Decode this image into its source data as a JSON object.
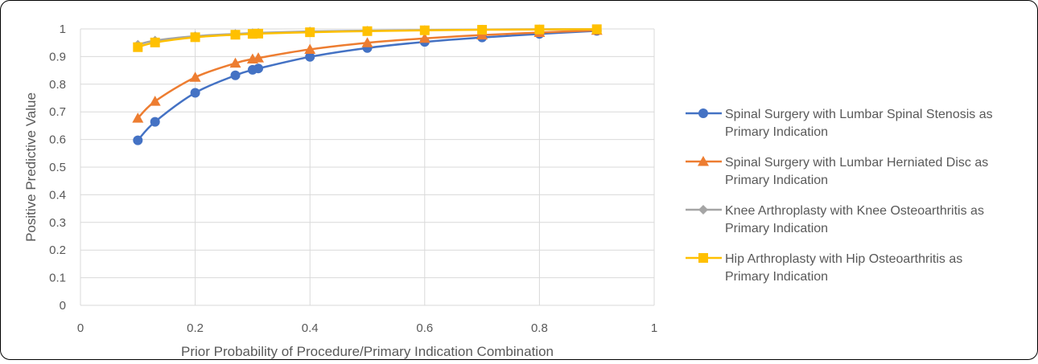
{
  "chart_data": {
    "type": "line",
    "title": "",
    "xlabel": "Prior Probability of Procedure/Primary Indication Combination",
    "ylabel": "Positive Predictive Value",
    "xlim": [
      0,
      1
    ],
    "ylim": [
      0,
      1
    ],
    "x_ticks": [
      "0",
      "0.2",
      "0.4",
      "0.6",
      "0.8",
      "1"
    ],
    "y_ticks": [
      "0",
      "0.1",
      "0.2",
      "0.3",
      "0.4",
      "0.5",
      "0.6",
      "0.7",
      "0.8",
      "0.9",
      "1"
    ],
    "grid": "vertical and horizontal major gridlines",
    "legend_position": "right",
    "series": [
      {
        "name": "Spinal Surgery with Lumbar Spinal Stenosis as Primary Indication",
        "legend_lines": [
          "Spinal Surgery with Lumbar Spinal Stenosis as",
          "Primary Indication"
        ],
        "color": "#4472C4",
        "marker": "circle",
        "x": [
          0.1,
          0.13,
          0.2,
          0.27,
          0.3,
          0.31,
          0.4,
          0.5,
          0.6,
          0.7,
          0.8,
          0.9
        ],
        "y": [
          0.597,
          0.664,
          0.769,
          0.832,
          0.852,
          0.857,
          0.899,
          0.931,
          0.953,
          0.969,
          0.982,
          0.993
        ]
      },
      {
        "name": "Spinal Surgery with Lumbar Herniated Disc as Primary Indication",
        "legend_lines": [
          "Spinal Surgery with Lumbar Herniated Disc as",
          "Primary Indication"
        ],
        "color": "#ED7D31",
        "marker": "triangle",
        "x": [
          0.1,
          0.13,
          0.2,
          0.27,
          0.3,
          0.31,
          0.4,
          0.5,
          0.6,
          0.7,
          0.8,
          0.9
        ],
        "y": [
          0.677,
          0.738,
          0.825,
          0.876,
          0.891,
          0.895,
          0.926,
          0.95,
          0.966,
          0.978,
          0.987,
          0.995
        ]
      },
      {
        "name": "Knee Arthroplasty with Knee Osteoarthritis as Primary Indication",
        "legend_lines": [
          "Knee Arthroplasty with Knee Osteoarthritis as",
          "Primary Indication"
        ],
        "color": "#A5A5A5",
        "marker": "diamond",
        "x": [
          0.1,
          0.13,
          0.2,
          0.27,
          0.3,
          0.31,
          0.4,
          0.5,
          0.6,
          0.7,
          0.8,
          0.9
        ],
        "y": [
          0.943,
          0.958,
          0.974,
          0.982,
          0.985,
          0.986,
          0.991,
          0.994,
          0.996,
          0.998,
          0.999,
          0.999
        ]
      },
      {
        "name": "Hip Arthroplasty with Hip Osteoarthritis as Primary Indication",
        "legend_lines": [
          "Hip Arthroplasty with Hip Osteoarthritis as",
          "Primary Indication"
        ],
        "color": "#FFC000",
        "marker": "square",
        "x": [
          0.1,
          0.13,
          0.2,
          0.27,
          0.3,
          0.31,
          0.4,
          0.5,
          0.6,
          0.7,
          0.8,
          0.9
        ],
        "y": [
          0.934,
          0.951,
          0.97,
          0.979,
          0.982,
          0.983,
          0.988,
          0.992,
          0.995,
          0.997,
          0.998,
          0.999
        ]
      }
    ]
  }
}
